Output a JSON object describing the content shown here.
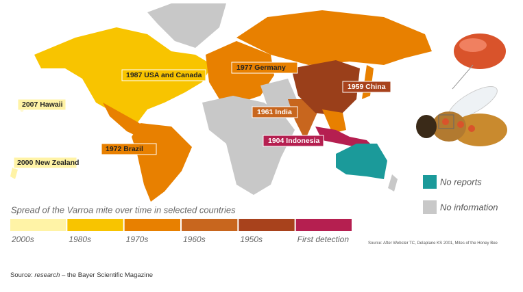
{
  "map_labels": [
    "1987 USA and Canada",
    "1977 Germany",
    "1959 China",
    "1961 India",
    "2007 Hawaii",
    "2000 New Zealand",
    "1972 Brazil",
    "1904 Indonesia"
  ],
  "legend": [
    "No reports",
    "No information"
  ],
  "scale_title": "Spread of the Varroa mite over time in selected countries",
  "scale": [
    "2000s",
    "1980s",
    "1970s",
    "1960s",
    "1950s",
    "First detection"
  ],
  "attribution": "Source: After Webster TC, Delaplane KS 2001, Mites of the Honey Bee",
  "footer": {
    "prefix": "Source:",
    "emphasis": "research",
    "suffix": "– the Bayer Scientific Magazine"
  }
}
